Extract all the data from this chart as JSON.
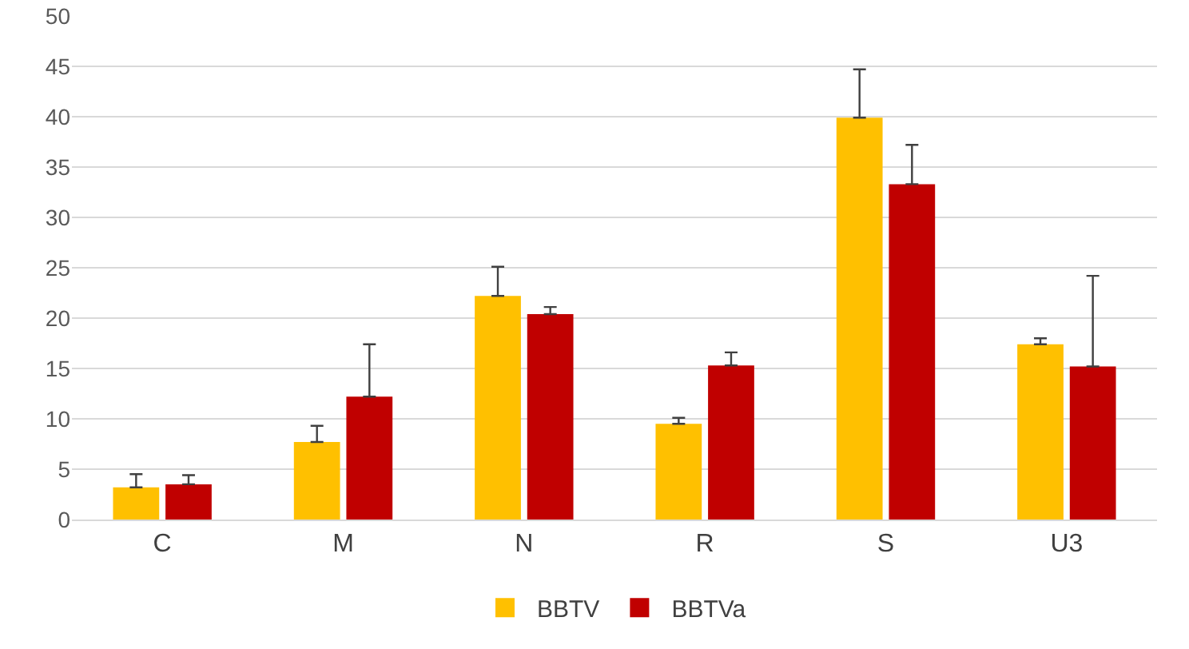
{
  "chart_data": {
    "type": "bar",
    "categories": [
      "C",
      "M",
      "N",
      "R",
      "S",
      "U3"
    ],
    "series": [
      {
        "name": "BBTV",
        "color": "#ffc000",
        "values": [
          3.2,
          7.7,
          22.2,
          9.5,
          39.9,
          17.4
        ],
        "errors": [
          [
            3.2,
            4.5
          ],
          [
            7.7,
            9.3
          ],
          [
            22.2,
            25.1
          ],
          [
            9.5,
            10.1
          ],
          [
            39.9,
            44.7
          ],
          [
            17.4,
            18.0
          ]
        ]
      },
      {
        "name": "BBTVa",
        "color": "#c00000",
        "values": [
          3.5,
          12.2,
          20.4,
          15.3,
          33.3,
          15.2
        ],
        "errors": [
          [
            3.5,
            4.4
          ],
          [
            12.2,
            17.4
          ],
          [
            20.4,
            21.1
          ],
          [
            15.3,
            16.6
          ],
          [
            33.3,
            37.2
          ],
          [
            15.2,
            24.2
          ]
        ]
      }
    ],
    "ylim": [
      0,
      50
    ],
    "yticks": [
      0,
      5,
      10,
      15,
      20,
      25,
      30,
      35,
      40,
      45,
      50
    ],
    "grid": "y",
    "legend": "bottom"
  }
}
